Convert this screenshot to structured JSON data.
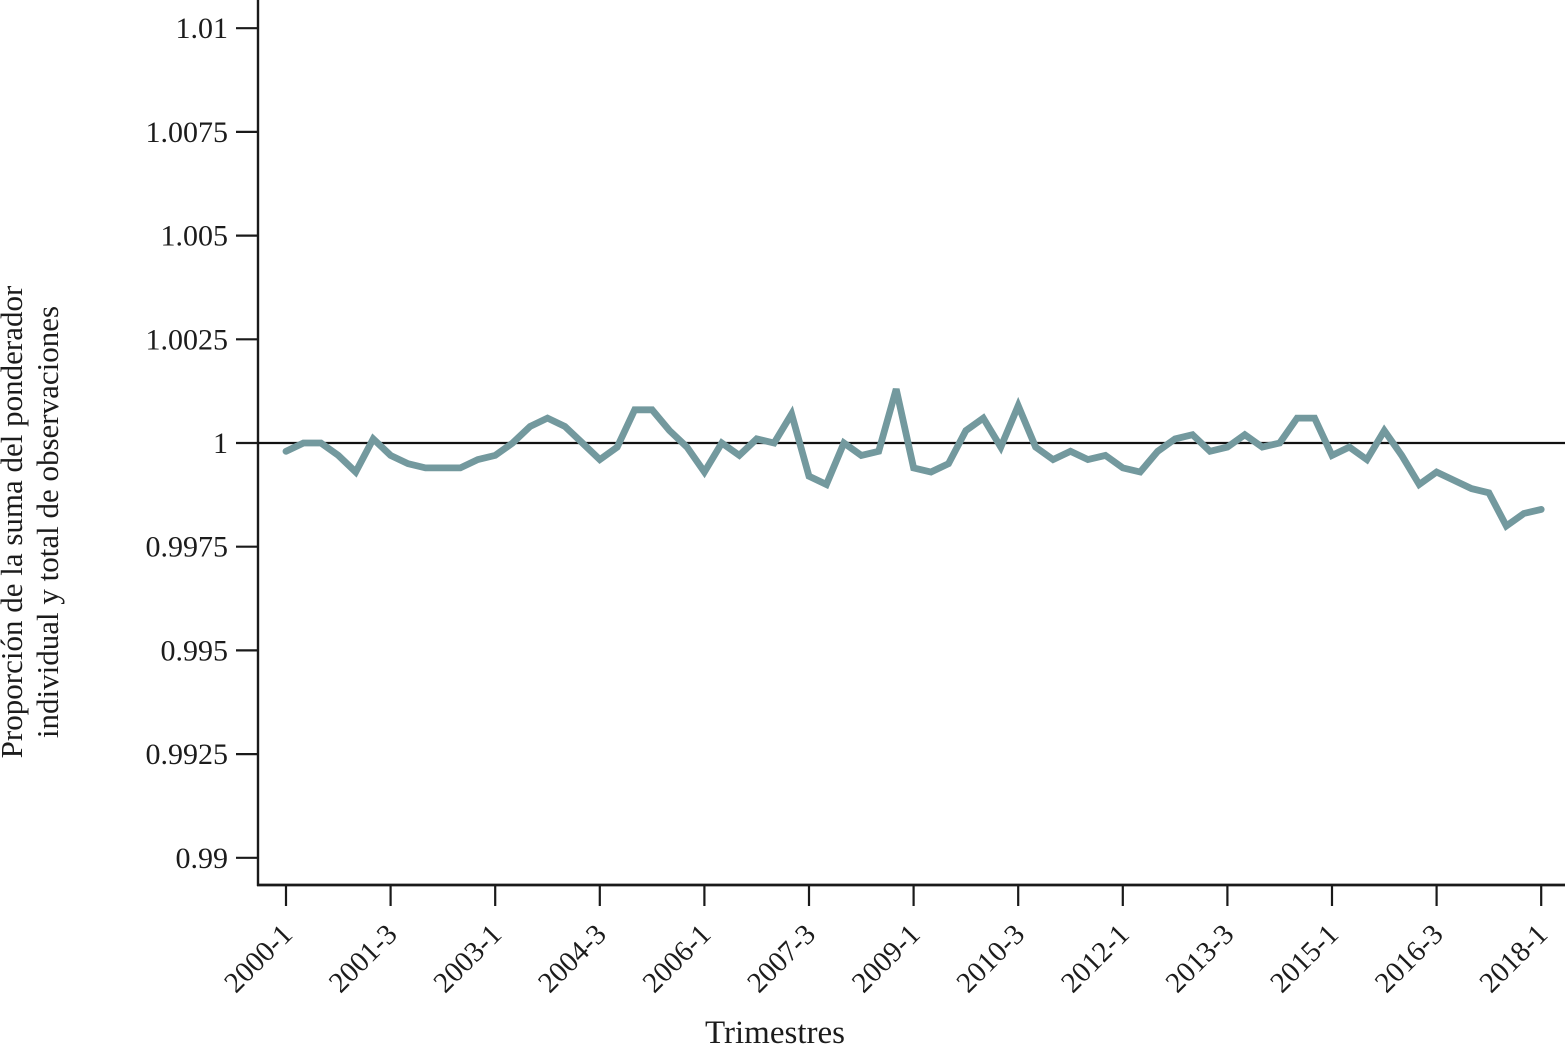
{
  "chart_data": {
    "type": "line",
    "title": "",
    "xlabel": "Trimestres",
    "ylabel": "Proporción de la suma del ponderador individual y total de observaciones",
    "ylabel_lines": [
      "Proporción de la suma del ponderador",
      "individual y total de observaciones"
    ],
    "grid": false,
    "legend": false,
    "line_color": "#73999E",
    "axis_color": "#1A1A1A",
    "reference_line": 1.0,
    "ylim": [
      0.99,
      1.0107
    ],
    "y_tick_values": [
      0.99,
      0.9925,
      0.995,
      0.9975,
      1,
      1.0025,
      1.005,
      1.0075,
      1.01
    ],
    "y_tick_labels": [
      "0.99",
      "0.9925",
      "0.995",
      "0.9975",
      "1",
      "1.0025",
      "1.005",
      "1.0075",
      "1.01"
    ],
    "x_tick_labels": [
      "2000-1",
      "2001-3",
      "2003-1",
      "2004-3",
      "2006-1",
      "2007-3",
      "2009-1",
      "2010-3",
      "2012-1",
      "2013-3",
      "2015-1",
      "2016-3",
      "2018-1"
    ],
    "x_tick_indices": [
      0,
      6,
      12,
      18,
      24,
      30,
      36,
      42,
      48,
      54,
      60,
      66,
      72
    ],
    "x": [
      "2000-1",
      "2000-2",
      "2000-3",
      "2000-4",
      "2001-1",
      "2001-2",
      "2001-3",
      "2001-4",
      "2002-1",
      "2002-2",
      "2002-3",
      "2002-4",
      "2003-1",
      "2003-2",
      "2003-3",
      "2003-4",
      "2004-1",
      "2004-2",
      "2004-3",
      "2004-4",
      "2005-1",
      "2005-2",
      "2005-3",
      "2005-4",
      "2006-1",
      "2006-2",
      "2006-3",
      "2006-4",
      "2007-1",
      "2007-2",
      "2007-3",
      "2007-4",
      "2008-1",
      "2008-2",
      "2008-3",
      "2008-4",
      "2009-1",
      "2009-2",
      "2009-3",
      "2009-4",
      "2010-1",
      "2010-2",
      "2010-3",
      "2010-4",
      "2011-1",
      "2011-2",
      "2011-3",
      "2011-4",
      "2012-1",
      "2012-2",
      "2012-3",
      "2012-4",
      "2013-1",
      "2013-2",
      "2013-3",
      "2013-4",
      "2014-1",
      "2014-2",
      "2014-3",
      "2014-4",
      "2015-1",
      "2015-2",
      "2015-3",
      "2015-4",
      "2016-1",
      "2016-2",
      "2016-3",
      "2016-4",
      "2017-1",
      "2017-2",
      "2017-3",
      "2017-4",
      "2018-1"
    ],
    "values": [
      0.9998,
      1.0,
      1.0,
      0.9997,
      0.9993,
      1.0001,
      0.9997,
      0.9995,
      0.9994,
      0.9994,
      0.9994,
      0.9996,
      0.9997,
      1.0,
      1.0004,
      1.0006,
      1.0004,
      1.0,
      0.9996,
      0.9999,
      1.0008,
      1.0008,
      1.0003,
      0.9999,
      0.9993,
      1.0,
      0.9997,
      1.0001,
      1.0,
      1.0007,
      0.9992,
      0.999,
      1.0,
      0.9997,
      0.9998,
      1.0013,
      0.9994,
      0.9993,
      0.9995,
      1.0003,
      1.0006,
      0.9999,
      1.0009,
      0.9999,
      0.9996,
      0.9998,
      0.9996,
      0.9997,
      0.9994,
      0.9993,
      0.9998,
      1.0001,
      1.0002,
      0.9998,
      0.9999,
      1.0002,
      0.9999,
      1.0,
      1.0006,
      1.0006,
      0.9997,
      0.9999,
      0.9996,
      1.0003,
      0.9997,
      0.999,
      0.9993,
      0.9991,
      0.9989,
      0.9988,
      0.998,
      0.9983,
      0.9984
    ]
  }
}
